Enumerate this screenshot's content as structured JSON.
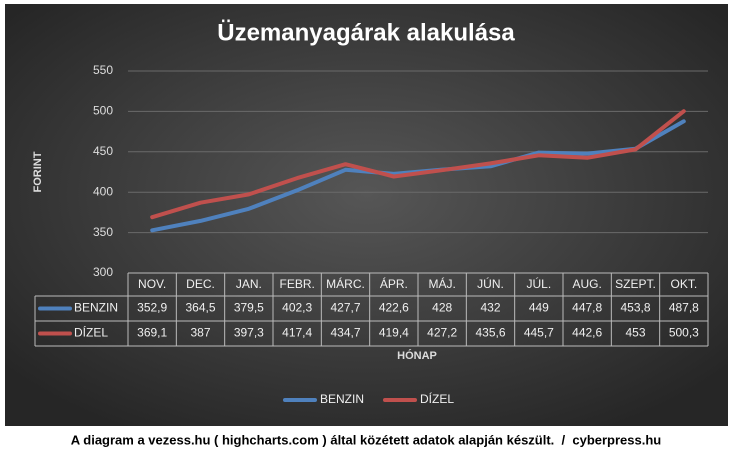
{
  "chart_data": {
    "type": "line",
    "title": "Üzemanyagárak alakulása",
    "y_label": "FORINT",
    "x_label": "HÓNAP",
    "categories": [
      "NOV.",
      "DEC.",
      "JAN.",
      "FEBR.",
      "MÁRC.",
      "ÁPR.",
      "MÁJ.",
      "JÚN.",
      "JÚL.",
      "AUG.",
      "SZEPT.",
      "OKT."
    ],
    "series": [
      {
        "name": "BENZIN",
        "color": "#4f81bd",
        "values": [
          352.9,
          364.5,
          379.5,
          402.3,
          427.7,
          422.6,
          428,
          432,
          449,
          447.8,
          453.8,
          487.8
        ],
        "value_labels": [
          "352,9",
          "364,5",
          "379,5",
          "402,3",
          "427,7",
          "422,6",
          "428",
          "432",
          "449",
          "447,8",
          "453,8",
          "487,8"
        ]
      },
      {
        "name": "DÍZEL",
        "color": "#c0504d",
        "values": [
          369.1,
          387,
          397.3,
          417.4,
          434.7,
          419.4,
          427.2,
          435.6,
          445.7,
          442.6,
          453,
          500.3
        ],
        "value_labels": [
          "369,1",
          "387",
          "397,3",
          "417,4",
          "434,7",
          "419,4",
          "427,2",
          "435,6",
          "445,7",
          "442,6",
          "453",
          "500,3"
        ]
      }
    ],
    "ylim": [
      300,
      550
    ],
    "yticks": [
      300,
      350,
      400,
      450,
      500,
      550
    ],
    "grid": true,
    "legend": "bottom",
    "footnote": "A diagram a vezess.hu ( highcharts.com ) által közétett adatok alapján készült.  /  cyberpress.hu"
  }
}
